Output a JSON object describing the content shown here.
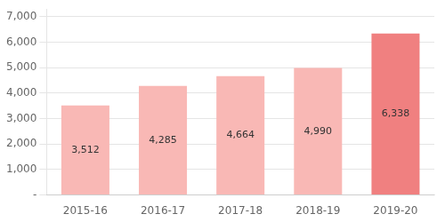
{
  "chart_data": {
    "type": "bar",
    "categories": [
      "2015-16",
      "2016-17",
      "2017-18",
      "2018-19",
      "2019-20"
    ],
    "values": [
      3512,
      4285,
      4664,
      4990,
      6338
    ],
    "value_labels": [
      "3,512",
      "4,285",
      "4,664",
      "4,990",
      "6,338"
    ],
    "colors": [
      "#f9b8b5",
      "#f9b8b5",
      "#f9b8b5",
      "#f9b8b5",
      "#f08080"
    ],
    "ylim": [
      0,
      7300
    ],
    "yticks": [
      {
        "value": 0,
        "label": "-"
      },
      {
        "value": 1000,
        "label": "1,000"
      },
      {
        "value": 2000,
        "label": "2,000"
      },
      {
        "value": 3000,
        "label": "3,000"
      },
      {
        "value": 4000,
        "label": "4,000"
      },
      {
        "value": 5000,
        "label": "5,000"
      },
      {
        "value": 6000,
        "label": "6,000"
      },
      {
        "value": 7000,
        "label": "7,000"
      }
    ],
    "grid": true,
    "data_labels": true
  }
}
